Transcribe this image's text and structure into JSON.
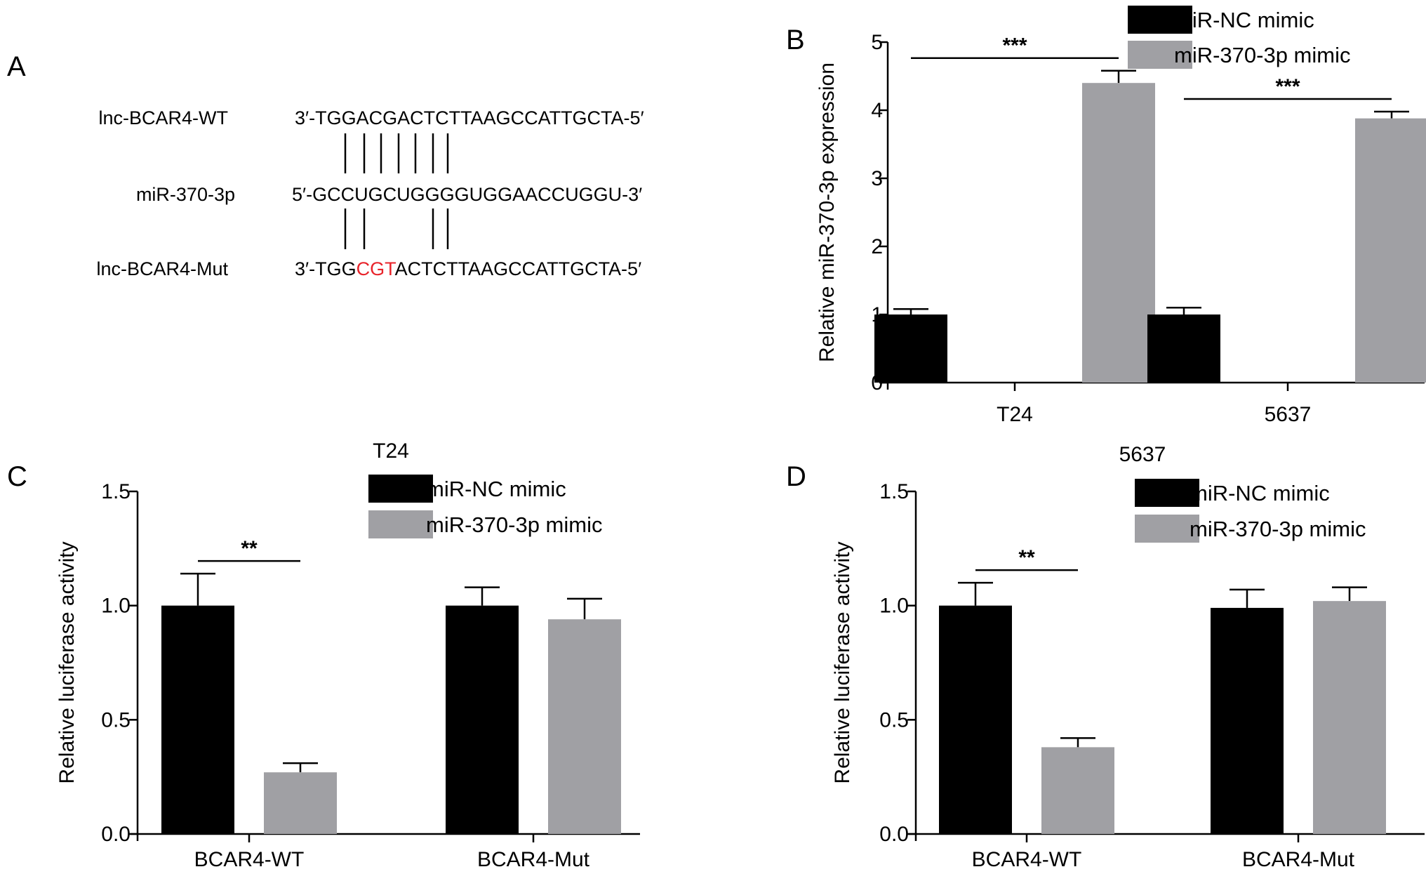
{
  "colors": {
    "nc": "#000000",
    "mimic": "#a0a0a4",
    "mutation": "#e8232a"
  },
  "panel_a": {
    "letter": "A",
    "rows": [
      {
        "label": "lnc-BCAR4-WT",
        "seq": "3′-TGGACGACTCTTAAGCCATTGCTA-5′",
        "seq_pre": "",
        "seq_hl": "",
        "seq_post": ""
      },
      {
        "label": "miR-370-3p",
        "seq": "5′-GCCUGCUGGGGUGGAACCUGGU-3′",
        "seq_pre": "",
        "seq_hl": "",
        "seq_post": ""
      },
      {
        "label": "lnc-BCAR4-Mut",
        "seq": "",
        "seq_pre": "3′-TGG",
        "seq_hl": "CGT",
        "seq_post": "ACTCTTAAGCCATTGCTA-5′"
      }
    ]
  },
  "chart_data": [
    {
      "panel": "B",
      "type": "bar",
      "title": "",
      "xlabel": "",
      "ylabel": "Relative miR-370-3p expression",
      "categories": [
        "T24",
        "5637"
      ],
      "series": [
        {
          "name": "miR-NC mimic",
          "values": [
            1.0,
            1.0
          ],
          "errors": [
            0.08,
            0.1
          ]
        },
        {
          "name": "miR-370-3p mimic",
          "values": [
            4.4,
            3.88
          ],
          "errors": [
            0.18,
            0.1
          ]
        }
      ],
      "ylim": [
        0,
        5
      ],
      "yticks": [
        "0",
        "1",
        "2",
        "3",
        "4",
        "5"
      ],
      "significance": [
        "***",
        "***"
      ],
      "legend": "top-right"
    },
    {
      "panel": "C",
      "type": "bar",
      "title": "T24",
      "xlabel": "",
      "ylabel": "Relative luciferase activity",
      "categories": [
        "BCAR4-WT",
        "BCAR4-Mut"
      ],
      "series": [
        {
          "name": "miR-NC mimic",
          "values": [
            1.0,
            1.0
          ],
          "errors": [
            0.14,
            0.08
          ]
        },
        {
          "name": "miR-370-3p mimic",
          "values": [
            0.27,
            0.94
          ],
          "errors": [
            0.04,
            0.09
          ]
        }
      ],
      "ylim": [
        0,
        1.5
      ],
      "yticks": [
        "0.0",
        "0.5",
        "1.0",
        "1.5"
      ],
      "significance": [
        "**",
        ""
      ],
      "legend": "top-right"
    },
    {
      "panel": "D",
      "type": "bar",
      "title": "5637",
      "xlabel": "",
      "ylabel": "Relative luciferase activity",
      "categories": [
        "BCAR4-WT",
        "BCAR4-Mut"
      ],
      "series": [
        {
          "name": "miR-NC mimic",
          "values": [
            1.0,
            0.99
          ],
          "errors": [
            0.1,
            0.08
          ]
        },
        {
          "name": "miR-370-3p mimic",
          "values": [
            0.38,
            1.02
          ],
          "errors": [
            0.04,
            0.06
          ]
        }
      ],
      "ylim": [
        0,
        1.5
      ],
      "yticks": [
        "0.0",
        "0.5",
        "1.0",
        "1.5"
      ],
      "significance": [
        "**",
        ""
      ],
      "legend": "top-right"
    }
  ]
}
